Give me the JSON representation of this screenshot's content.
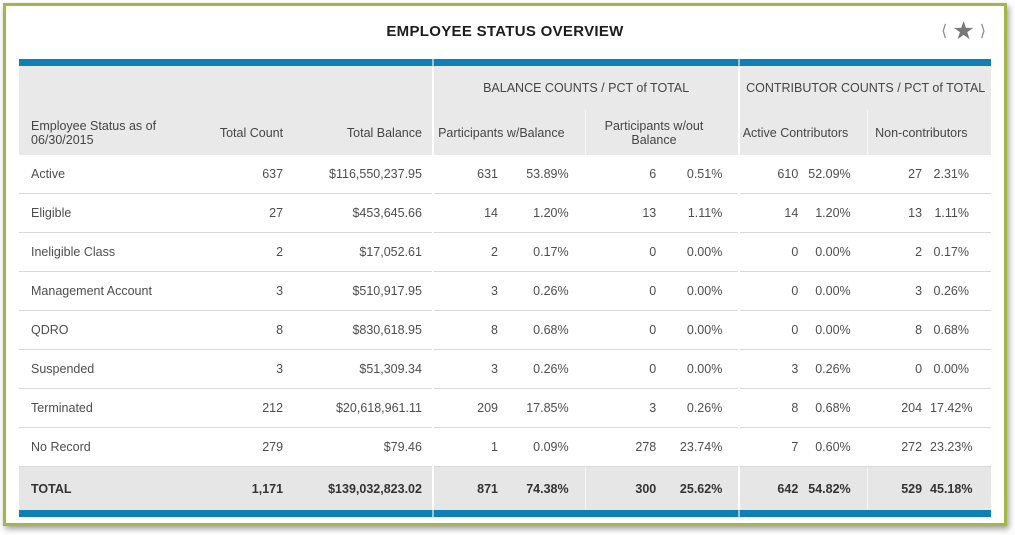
{
  "header": {
    "title": "EMPLOYEE STATUS OVERVIEW",
    "nav": {
      "prev_glyph": "⟨",
      "star_glyph": "★",
      "next_glyph": "⟩"
    }
  },
  "colors": {
    "accent_blue": "#0f80b4",
    "frame_green": "#a5b648",
    "header_gray": "#e9e9e9",
    "total_row_gray": "#e6e6e6"
  },
  "table": {
    "group_headers": [
      "",
      "BALANCE COUNTS / PCT of TOTAL",
      "CONTRIBUTOR COUNTS / PCT of TOTAL"
    ],
    "column_headers": [
      "Employee Status as of 06/30/2015",
      "Total Count",
      "Total Balance",
      "Participants w/Balance",
      "Participants w/out Balance",
      "Active Contributors",
      "Non-contributors"
    ],
    "rows": [
      [
        "Active",
        "637",
        "$116,550,237.95",
        "631",
        "53.89%",
        "6",
        "0.51%",
        "610",
        "52.09%",
        "27",
        "2.31%"
      ],
      [
        "Eligible",
        "27",
        "$453,645.66",
        "14",
        "1.20%",
        "13",
        "1.11%",
        "14",
        "1.20%",
        "13",
        "1.11%"
      ],
      [
        "Ineligible Class",
        "2",
        "$17,052.61",
        "2",
        "0.17%",
        "0",
        "0.00%",
        "0",
        "0.00%",
        "2",
        "0.17%"
      ],
      [
        "Management Account",
        "3",
        "$510,917.95",
        "3",
        "0.26%",
        "0",
        "0.00%",
        "0",
        "0.00%",
        "3",
        "0.26%"
      ],
      [
        "QDRO",
        "8",
        "$830,618.95",
        "8",
        "0.68%",
        "0",
        "0.00%",
        "0",
        "0.00%",
        "8",
        "0.68%"
      ],
      [
        "Suspended",
        "3",
        "$51,309.34",
        "3",
        "0.26%",
        "0",
        "0.00%",
        "3",
        "0.26%",
        "0",
        "0.00%"
      ],
      [
        "Terminated",
        "212",
        "$20,618,961.11",
        "209",
        "17.85%",
        "3",
        "0.26%",
        "8",
        "0.68%",
        "204",
        "17.42%"
      ],
      [
        "No Record",
        "279",
        "$79.46",
        "1",
        "0.09%",
        "278",
        "23.74%",
        "7",
        "0.60%",
        "272",
        "23.23%"
      ]
    ],
    "total": [
      "TOTAL",
      "1,171",
      "$139,032,823.02",
      "871",
      "74.38%",
      "300",
      "25.62%",
      "642",
      "54.82%",
      "529",
      "45.18%"
    ]
  }
}
